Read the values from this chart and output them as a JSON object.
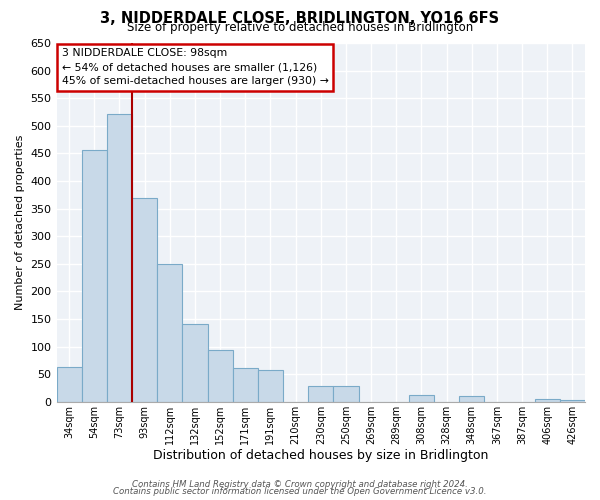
{
  "title": "3, NIDDERDALE CLOSE, BRIDLINGTON, YO16 6FS",
  "subtitle": "Size of property relative to detached houses in Bridlington",
  "xlabel": "Distribution of detached houses by size in Bridlington",
  "ylabel": "Number of detached properties",
  "bar_color": "#c8d9e8",
  "bar_edge_color": "#7aaac8",
  "categories": [
    "34sqm",
    "54sqm",
    "73sqm",
    "93sqm",
    "112sqm",
    "132sqm",
    "152sqm",
    "171sqm",
    "191sqm",
    "210sqm",
    "230sqm",
    "250sqm",
    "269sqm",
    "289sqm",
    "308sqm",
    "328sqm",
    "348sqm",
    "367sqm",
    "387sqm",
    "406sqm",
    "426sqm"
  ],
  "values": [
    63,
    456,
    521,
    369,
    250,
    141,
    93,
    62,
    57,
    0,
    28,
    29,
    0,
    0,
    13,
    0,
    11,
    0,
    0,
    5,
    3
  ],
  "ylim": [
    0,
    650
  ],
  "yticks": [
    0,
    50,
    100,
    150,
    200,
    250,
    300,
    350,
    400,
    450,
    500,
    550,
    600,
    650
  ],
  "vline_x": 2.5,
  "vline_color": "#aa0000",
  "annotation_title": "3 NIDDERDALE CLOSE: 98sqm",
  "annotation_line1": "← 54% of detached houses are smaller (1,126)",
  "annotation_line2": "45% of semi-detached houses are larger (930) →",
  "annotation_box_color": "#ffffff",
  "annotation_box_edge": "#cc0000",
  "footer_line1": "Contains HM Land Registry data © Crown copyright and database right 2024.",
  "footer_line2": "Contains public sector information licensed under the Open Government Licence v3.0.",
  "background_color": "#eef2f7",
  "grid_color": "#c8d4e0",
  "grid_color2": "#ffffff"
}
